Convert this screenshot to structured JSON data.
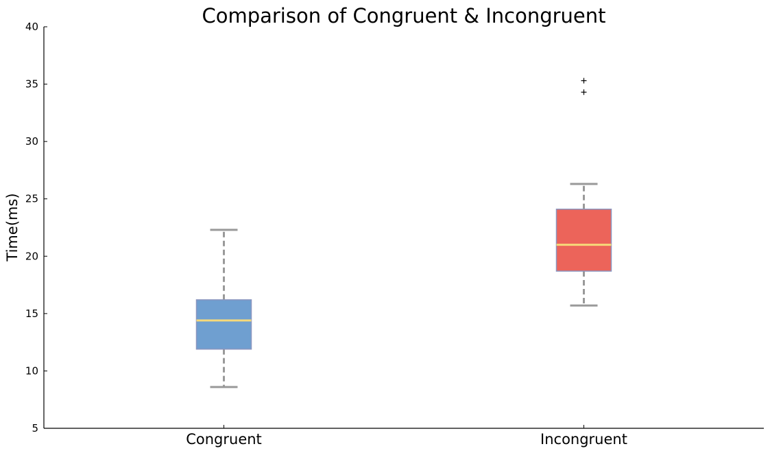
{
  "chart_data": {
    "type": "box",
    "title": "Comparison of Congruent & Incongruent",
    "ylabel": "Time(ms)",
    "xlabel": "",
    "ylim": [
      5,
      40
    ],
    "yticks": [
      5,
      10,
      15,
      20,
      25,
      30,
      35,
      40
    ],
    "grid": false,
    "categories": [
      "Congruent",
      "Incongruent"
    ],
    "series": [
      {
        "category": "Congruent",
        "whisker_low": 8.6,
        "q1": 11.9,
        "median": 14.4,
        "q3": 16.2,
        "whisker_high": 22.3,
        "outliers": [],
        "color": "#6f9fd0"
      },
      {
        "category": "Incongruent",
        "whisker_low": 15.7,
        "q1": 18.7,
        "median": 21.0,
        "q3": 24.1,
        "whisker_high": 26.3,
        "outliers": [
          35.3,
          34.3
        ],
        "color": "#ec645a"
      }
    ],
    "colors": {
      "median": "#f6d979",
      "whisker": "#999999",
      "box_edge": "#8a96bf",
      "axis": "#000000"
    }
  }
}
